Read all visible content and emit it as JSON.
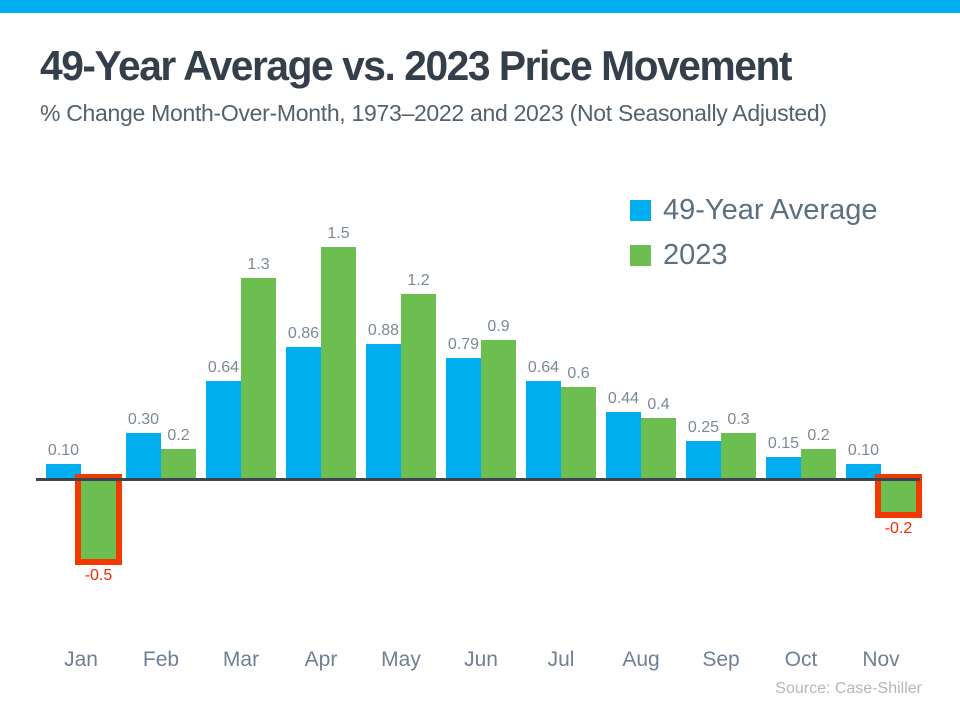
{
  "page": {
    "background": "#ffffff",
    "top_strip_color": "#00AEEF"
  },
  "header": {
    "title": "49-Year Average vs. 2023 Price Movement",
    "subtitle": "% Change Month-Over-Month, 1973–2022 and 2023 (Not Seasonally Adjusted)"
  },
  "legend": {
    "position": "top-right",
    "items": [
      {
        "label": "49-Year Average",
        "color": "#00AEEF"
      },
      {
        "label": "2023",
        "color": "#6CBE50"
      }
    ]
  },
  "footer": {
    "source": "Source: Case-Shiller"
  },
  "chart_data": {
    "type": "bar",
    "title": "49-Year Average vs. 2023 Price Movement",
    "subtitle": "% Change Month-Over-Month, 1973–2022 and 2023 (Not Seasonally Adjusted)",
    "xlabel": "",
    "ylabel": "% Change Month-Over-Month",
    "categories": [
      "Jan",
      "Feb",
      "Mar",
      "Apr",
      "May",
      "Jun",
      "Jul",
      "Aug",
      "Sep",
      "Oct",
      "Nov"
    ],
    "series": [
      {
        "name": "49-Year Average",
        "color": "#00AEEF",
        "values": [
          0.1,
          0.3,
          0.64,
          0.86,
          0.88,
          0.79,
          0.64,
          0.44,
          0.25,
          0.15,
          0.1
        ],
        "labels": [
          "0.10",
          "0.30",
          "0.64",
          "0.86",
          "0.88",
          "0.79",
          "0.64",
          "0.44",
          "0.25",
          "0.15",
          "0.10"
        ]
      },
      {
        "name": "2023",
        "color": "#6CBE50",
        "values": [
          -0.5,
          0.2,
          1.3,
          1.5,
          1.2,
          0.9,
          0.6,
          0.4,
          0.3,
          0.2,
          -0.2
        ],
        "labels": [
          "-0.5",
          "0.2",
          "1.3",
          "1.5",
          "1.2",
          "0.9",
          "0.6",
          "0.4",
          "0.3",
          "0.2",
          "-0.2"
        ]
      }
    ],
    "ylim": [
      -0.6,
      1.6
    ],
    "grid": false,
    "legend_position": "top-right",
    "baseline": 0,
    "value_label_color": "#7C8995",
    "axis_color": "#3A4551",
    "negative_highlight": {
      "series": "2023",
      "indices": [
        0,
        10
      ],
      "box_color": "#F23A00",
      "label_color": "#FB2600"
    }
  }
}
